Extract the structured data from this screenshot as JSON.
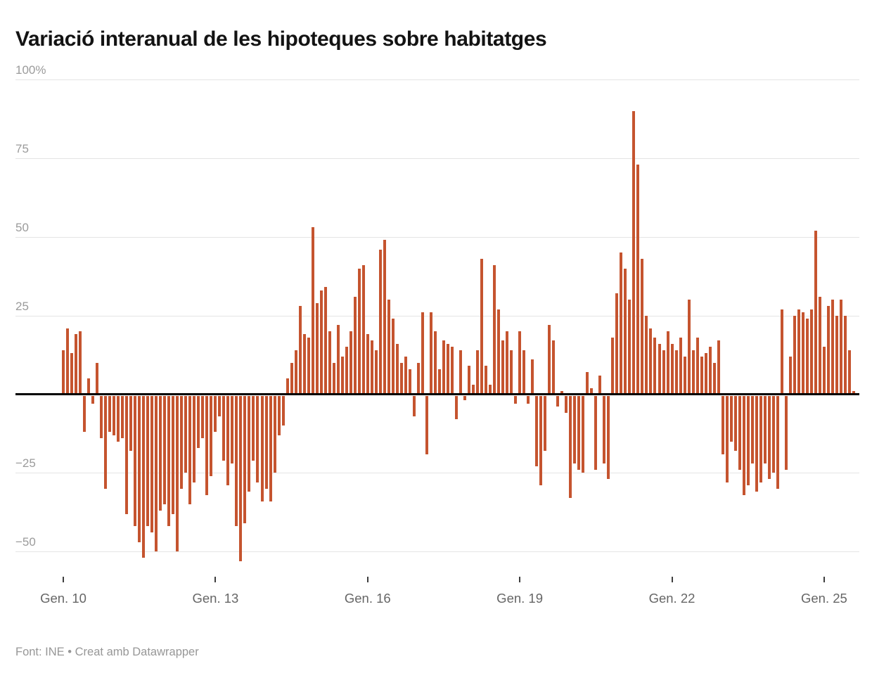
{
  "title": "Variació interanual de les hipoteques sobre habitatges",
  "footer": "Font: INE • Creat amb Datawrapper",
  "colors": {
    "bar": "#c5542f",
    "baseline": "#000000",
    "grid": "#e4e4e4",
    "axis_text": "#9b9b9b"
  },
  "chart_data": {
    "type": "bar",
    "title": "Variació interanual de les hipoteques sobre habitatges",
    "source": "Font: INE",
    "tool": "Creat amb Datawrapper",
    "unit": "%",
    "frequency": "monthly",
    "start": "2010-01",
    "x_tick_labels": [
      "Gen. 10",
      "Gen. 13",
      "Gen. 16",
      "Gen. 19",
      "Gen. 22",
      "Gen. 25"
    ],
    "x_tick_indices": [
      0,
      36,
      72,
      108,
      144,
      180
    ],
    "y_ticks": [
      100,
      75,
      50,
      25,
      -25,
      -50
    ],
    "y_tick_labels": [
      "100%",
      "75",
      "50",
      "25",
      "−25",
      "−50"
    ],
    "ylim": [
      -58,
      100
    ],
    "grid": true,
    "legend": "none",
    "bar_color": "#c5542f",
    "values": [
      14,
      21,
      13,
      19,
      20,
      -12,
      5,
      -3,
      10,
      -14,
      -30,
      -12,
      -13,
      -15,
      -14,
      -38,
      -18,
      -42,
      -47,
      -52,
      -42,
      -44,
      -50,
      -37,
      -35,
      -42,
      -38,
      -50,
      -30,
      -25,
      -35,
      -28,
      -17,
      -14,
      -32,
      -26,
      -12,
      -7,
      -21,
      -29,
      -22,
      -42,
      -53,
      -41,
      -31,
      -21,
      -28,
      -34,
      -30,
      -34,
      -25,
      -13,
      -10,
      5,
      10,
      14,
      28,
      19,
      18,
      53,
      29,
      33,
      34,
      20,
      10,
      22,
      12,
      15,
      20,
      31,
      40,
      41,
      19,
      17,
      14,
      46,
      49,
      30,
      24,
      16,
      10,
      12,
      8,
      -7,
      10,
      26,
      -19,
      26,
      20,
      8,
      17,
      16,
      15,
      -8,
      14,
      -2,
      9,
      3,
      14,
      43,
      9,
      3,
      41,
      27,
      17,
      20,
      14,
      -3,
      20,
      14,
      -3,
      11,
      -23,
      -29,
      -18,
      22,
      17,
      -4,
      1,
      -6,
      -33,
      -22,
      -24,
      -25,
      7,
      2,
      -24,
      6,
      -22,
      -27,
      18,
      32,
      45,
      40,
      30,
      90,
      73,
      43,
      25,
      21,
      18,
      16,
      14,
      20,
      16,
      14,
      18,
      12,
      30,
      14,
      18,
      12,
      13,
      15,
      10,
      17,
      -19,
      -28,
      -15,
      -18,
      -24,
      -32,
      -29,
      -22,
      -31,
      -28,
      -22,
      -27,
      -25,
      -30,
      27,
      -24,
      12,
      25,
      27,
      26,
      24,
      27,
      52,
      31,
      15,
      28,
      30,
      25,
      30,
      25,
      14,
      1
    ]
  }
}
